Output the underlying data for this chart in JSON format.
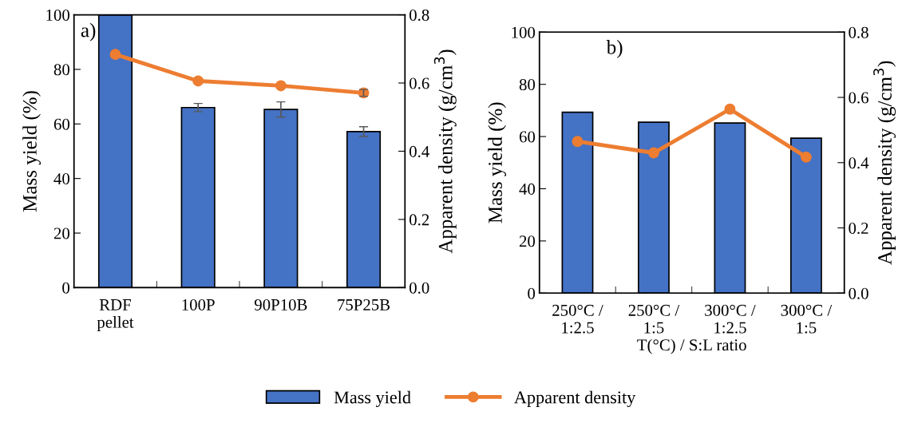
{
  "chart_data": [
    {
      "type": "bar",
      "annotations": [
        "a)"
      ],
      "ylabel": "Mass yield (%)",
      "y2label": "Apparent density (g/cm$^{3}$)",
      "categories": [
        "RDF\npellet",
        "100P",
        "90P10B",
        "75P25B"
      ],
      "series": [
        {
          "name": "Mass yield",
          "color": "#4472c4",
          "values": [
            100,
            66,
            65.3,
            57.2
          ],
          "errors": [
            null,
            1.5,
            2.8,
            1.8
          ]
        },
        {
          "name": "Apparent density",
          "type": "line",
          "axis": "y2",
          "color": "#ed7d31",
          "values": [
            0.684,
            0.606,
            0.592,
            0.571
          ],
          "errors": [
            null,
            null,
            null,
            0.01
          ]
        }
      ],
      "ylim": [
        0,
        100
      ],
      "yticks": [
        0,
        20,
        40,
        60,
        80,
        100
      ],
      "y2lim": [
        0,
        0.8
      ],
      "y2ticks": [
        {
          "value": 0,
          "label": "0.0"
        },
        0.2,
        0.4,
        0.6,
        0.8
      ],
      "marker": "circle",
      "legend": "bottom",
      "grid": false
    },
    {
      "type": "bar",
      "annotations": [
        "b)"
      ],
      "xlabel": "T(°C) / S:L ratio",
      "ylabel": "Mass yield (%)",
      "y2label": "Apparent density (g/cm$^{3}$)",
      "categories": [
        "250°C /\n1:2.5",
        "250°C /\n1:5",
        "300°C /\n1:2.5",
        "300°C /\n1:5"
      ],
      "series": [
        {
          "color": "#4472c4",
          "values": [
            69.3,
            65.5,
            65.2,
            59.4
          ]
        },
        {
          "type": "line",
          "axis": "y2",
          "color": "#ed7d31",
          "values": [
            0.465,
            0.43,
            0.564,
            0.417
          ]
        }
      ],
      "ylim": [
        0,
        100
      ],
      "yticks": [
        0,
        20,
        40,
        60,
        80,
        100
      ],
      "y2lim": [
        0,
        0.8
      ],
      "y2ticks": [
        {
          "value": 0,
          "label": "0.0"
        },
        0.2,
        0.4,
        0.6,
        0.8
      ],
      "marker": "circle",
      "grid": false
    }
  ]
}
